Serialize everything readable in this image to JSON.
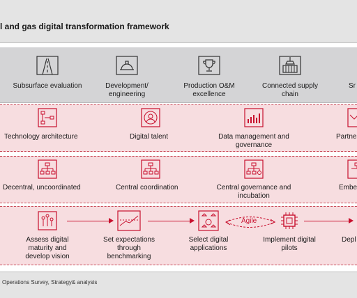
{
  "title": "l and gas digital transformation framework",
  "value_chain": [
    "Subsurface evaluation",
    "Development/ engineering",
    "Production O&M excellence",
    "Connected supply chain",
    "Sr"
  ],
  "enablers": [
    "Technology architecture",
    "Digital talent",
    "Data management and governance",
    "Partne allia"
  ],
  "governance": [
    "Decentral, uncoordinated",
    "Central coordination",
    "Central governance and incubation",
    "Embe"
  ],
  "process": [
    "Assess digital maturity and develop vision",
    "Set expectations through benchmarking",
    "Select digital applications",
    "Implement digital pilots",
    "Depl con"
  ],
  "agile_label": "Agile",
  "source": "Operations Survey, Strategy& analysis",
  "colors": {
    "accent": "#c8102e",
    "pink_band": "#f7dde0",
    "gray_band": "#d4d4d6"
  }
}
